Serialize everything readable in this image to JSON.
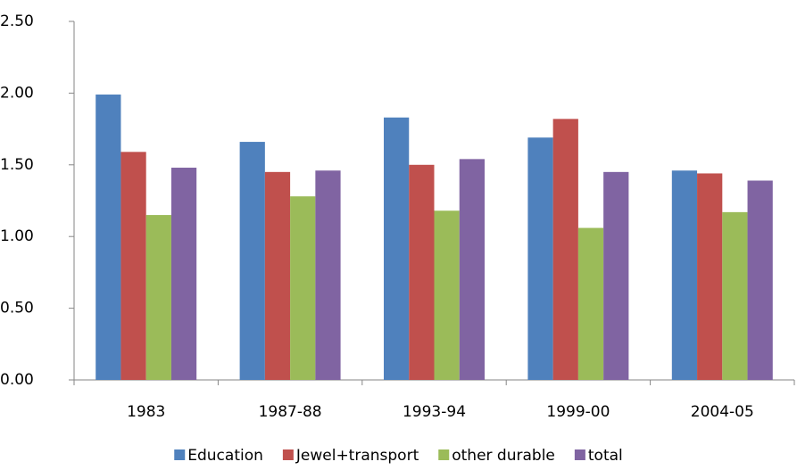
{
  "chart_data": {
    "type": "bar",
    "categories": [
      "1983",
      "1987-88",
      "1993-94",
      "1999-00",
      "2004-05"
    ],
    "series": [
      {
        "name": "Education",
        "color": "#4f81bd",
        "values": [
          1.99,
          1.66,
          1.83,
          1.69,
          1.46
        ]
      },
      {
        "name": "Jewel+transport",
        "color": "#c0504d",
        "values": [
          1.59,
          1.45,
          1.5,
          1.82,
          1.44
        ]
      },
      {
        "name": "other durable",
        "color": "#9bbb59",
        "values": [
          1.15,
          1.28,
          1.18,
          1.06,
          1.17
        ]
      },
      {
        "name": "total",
        "color": "#8064a2",
        "values": [
          1.48,
          1.46,
          1.54,
          1.45,
          1.39
        ]
      }
    ],
    "ylim": [
      0,
      2.5
    ],
    "yticks": [
      {
        "value": 0,
        "label": "0.00"
      },
      {
        "value": 0.5,
        "label": "0.50"
      },
      {
        "value": 1,
        "label": "1.00"
      },
      {
        "value": 1.5,
        "label": "1.50"
      },
      {
        "value": 2,
        "label": "2.00"
      },
      {
        "value": 2.5,
        "label": "2.50"
      }
    ],
    "legend": "bottom"
  }
}
